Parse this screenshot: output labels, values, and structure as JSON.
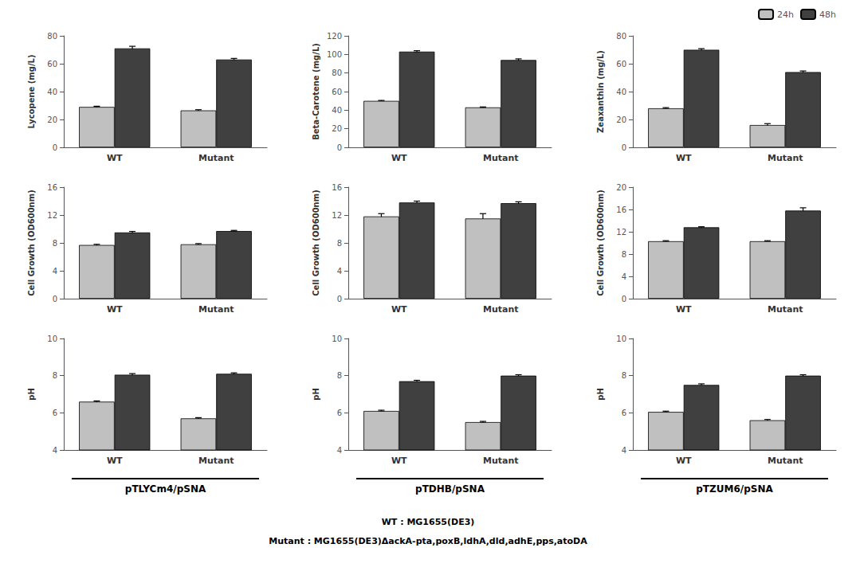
{
  "chart_data": [
    {
      "type": "bar",
      "ylabel": "Lycopene (mg/L)",
      "categories": [
        "WT",
        "Mutant"
      ],
      "series": [
        {
          "name": "24h",
          "color": "#c0c0c0",
          "values": [
            29,
            26.5
          ],
          "errors": [
            0.5,
            0.5
          ]
        },
        {
          "name": "48h",
          "color": "#404040",
          "values": [
            71,
            63
          ],
          "errors": [
            1.5,
            0.8
          ]
        }
      ],
      "ylim": [
        0,
        80
      ],
      "yticks": [
        0,
        20,
        40,
        60,
        80
      ],
      "grid": false
    },
    {
      "type": "bar",
      "ylabel": "Beta-Carotene (mg/L)",
      "categories": [
        "WT",
        "Mutant"
      ],
      "series": [
        {
          "name": "24h",
          "color": "#c0c0c0",
          "values": [
            50,
            43
          ],
          "errors": [
            0.5,
            0.5
          ]
        },
        {
          "name": "48h",
          "color": "#404040",
          "values": [
            103,
            94
          ],
          "errors": [
            1.0,
            1.2
          ]
        }
      ],
      "ylim": [
        0,
        120
      ],
      "yticks": [
        0,
        20,
        40,
        60,
        80,
        100,
        120
      ],
      "grid": false
    },
    {
      "type": "bar",
      "ylabel": "Zeaxanthin (mg/L)",
      "categories": [
        "WT",
        "Mutant"
      ],
      "series": [
        {
          "name": "24h",
          "color": "#c0c0c0",
          "values": [
            28,
            16
          ],
          "errors": [
            0.5,
            1.0
          ]
        },
        {
          "name": "48h",
          "color": "#404040",
          "values": [
            70,
            54
          ],
          "errors": [
            0.8,
            0.8
          ]
        }
      ],
      "ylim": [
        0,
        80
      ],
      "yticks": [
        0,
        20,
        40,
        60,
        80
      ],
      "grid": false,
      "legend": "upper right"
    },
    {
      "type": "bar",
      "ylabel": "Cell Growth (OD600nm)",
      "categories": [
        "WT",
        "Mutant"
      ],
      "series": [
        {
          "name": "24h",
          "color": "#c0c0c0",
          "values": [
            7.7,
            7.8
          ],
          "errors": [
            0.1,
            0.1
          ]
        },
        {
          "name": "48h",
          "color": "#404040",
          "values": [
            9.5,
            9.7
          ],
          "errors": [
            0.15,
            0.1
          ]
        }
      ],
      "ylim": [
        0,
        16
      ],
      "yticks": [
        0,
        4,
        8,
        12,
        16
      ],
      "grid": false
    },
    {
      "type": "bar",
      "ylabel": "Cell Growth (OD600nm)",
      "categories": [
        "WT",
        "Mutant"
      ],
      "series": [
        {
          "name": "24h",
          "color": "#c0c0c0",
          "values": [
            11.8,
            11.5
          ],
          "errors": [
            0.4,
            0.7
          ]
        },
        {
          "name": "48h",
          "color": "#404040",
          "values": [
            13.8,
            13.7
          ],
          "errors": [
            0.2,
            0.2
          ]
        }
      ],
      "ylim": [
        0,
        16
      ],
      "yticks": [
        0,
        4,
        8,
        12,
        16
      ],
      "grid": false
    },
    {
      "type": "bar",
      "ylabel": "Cell Growth (OD600nm)",
      "categories": [
        "WT",
        "Mutant"
      ],
      "series": [
        {
          "name": "24h",
          "color": "#c0c0c0",
          "values": [
            10.3,
            10.3
          ],
          "errors": [
            0.1,
            0.1
          ]
        },
        {
          "name": "48h",
          "color": "#404040",
          "values": [
            12.8,
            15.8
          ],
          "errors": [
            0.1,
            0.5
          ]
        }
      ],
      "ylim": [
        0,
        20
      ],
      "yticks": [
        0,
        4,
        8,
        12,
        16,
        20
      ],
      "grid": false
    },
    {
      "type": "bar",
      "ylabel": "pH",
      "xlabel": "pTLYCm4/pSNA",
      "categories": [
        "WT",
        "Mutant"
      ],
      "series": [
        {
          "name": "24h",
          "color": "#c0c0c0",
          "values": [
            6.6,
            5.7
          ],
          "errors": [
            0.04,
            0.04
          ]
        },
        {
          "name": "48h",
          "color": "#404040",
          "values": [
            8.05,
            8.1
          ],
          "errors": [
            0.06,
            0.05
          ]
        }
      ],
      "ylim": [
        4,
        10
      ],
      "yticks": [
        4,
        6,
        8,
        10
      ],
      "grid": false
    },
    {
      "type": "bar",
      "ylabel": "pH",
      "xlabel": "pTDHB/pSNA",
      "categories": [
        "WT",
        "Mutant"
      ],
      "series": [
        {
          "name": "24h",
          "color": "#c0c0c0",
          "values": [
            6.1,
            5.5
          ],
          "errors": [
            0.04,
            0.04
          ]
        },
        {
          "name": "48h",
          "color": "#404040",
          "values": [
            7.7,
            8.0
          ],
          "errors": [
            0.05,
            0.05
          ]
        }
      ],
      "ylim": [
        4,
        10
      ],
      "yticks": [
        4,
        6,
        8,
        10
      ],
      "grid": false,
      "annotations": [
        "WT : MG1655(DE3)",
        "Mutant : MG1655(DE3)ΔackA-pta,poxB,ldhA,dld,adhE,pps,atoDA"
      ]
    },
    {
      "type": "bar",
      "ylabel": "pH",
      "xlabel": "pTZUM6/pSNA",
      "categories": [
        "WT",
        "Mutant"
      ],
      "series": [
        {
          "name": "24h",
          "color": "#c0c0c0",
          "values": [
            6.05,
            5.6
          ],
          "errors": [
            0.04,
            0.04
          ]
        },
        {
          "name": "48h",
          "color": "#404040",
          "values": [
            7.5,
            8.0
          ],
          "errors": [
            0.06,
            0.05
          ]
        }
      ],
      "ylim": [
        4,
        10
      ],
      "yticks": [
        4,
        6,
        8,
        10
      ],
      "grid": false
    }
  ]
}
